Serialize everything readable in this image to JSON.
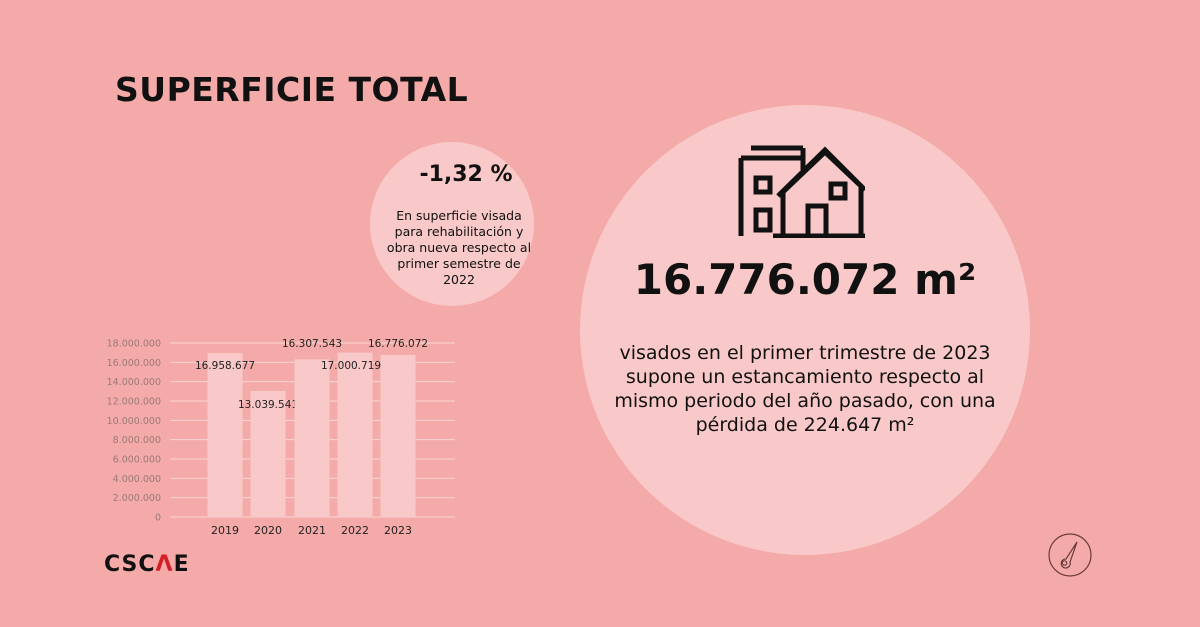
{
  "title": "SUPERFICIE TOTAL",
  "highlight": {
    "percent": "-1,32 %",
    "description": "En superficie visada para rehabilitación y obra nueva respecto al primer semestre de 2022"
  },
  "main_stat": {
    "icon": "house-building-icon",
    "value": "16.776.072 m²",
    "description": "visados en el primer trimestre de 2023 supone un estancamiento respecto al mismo periodo del año pasado, con una pérdida de 224.647 m²"
  },
  "logo": {
    "text_before": "CSC",
    "text_accent": "Λ",
    "text_after": "E",
    "accent_color": "#d41f26"
  },
  "corner_icon": "gauge-icon",
  "colors": {
    "background": "#f4aaa8",
    "circle": "#f8c9c8",
    "bar": "#f8c9c8",
    "tick_text": "#9a7a7a"
  },
  "chart_data": {
    "type": "bar",
    "categories": [
      "2019",
      "2020",
      "2021",
      "2022",
      "2023"
    ],
    "values": [
      16958677,
      13039541,
      16307543,
      17000719,
      16776072
    ],
    "data_labels": [
      "16.958.677",
      "13.039.541",
      "16.307.543",
      "17.000.719",
      "16.776.072"
    ],
    "ylim": [
      0,
      18000000
    ],
    "yticks": [
      "0",
      "2.000.000",
      "4.000.000",
      "6.000.000",
      "8.000.000",
      "10.000.000",
      "12.000.000",
      "14.000.000",
      "16.000.000",
      "18.000.000"
    ],
    "grid": true,
    "title": "",
    "xlabel": "",
    "ylabel": ""
  }
}
